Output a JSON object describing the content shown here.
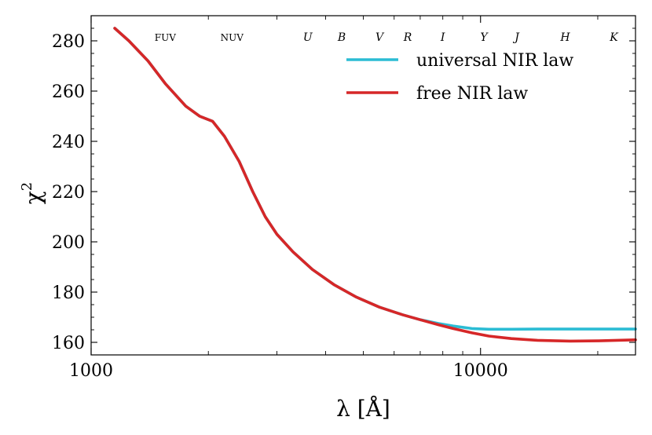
{
  "chart_data": {
    "type": "line",
    "xscale": "log",
    "xlabel": "λ [Å]",
    "ylabel": "χ",
    "ylabel_sup": "2",
    "xlim": [
      1000,
      25000
    ],
    "ylim": [
      155,
      290
    ],
    "xticks": [
      {
        "value": 1000,
        "label": "1000"
      },
      {
        "value": 10000,
        "label": "10000"
      }
    ],
    "yticks": [
      {
        "value": 160,
        "label": "160"
      },
      {
        "value": 180,
        "label": "180"
      },
      {
        "value": 200,
        "label": "200"
      },
      {
        "value": 220,
        "label": "220"
      },
      {
        "value": 240,
        "label": "240"
      },
      {
        "value": 260,
        "label": "260"
      },
      {
        "value": 280,
        "label": "280"
      }
    ],
    "bands": [
      {
        "label": "FUV",
        "x": 1550,
        "italic": false
      },
      {
        "label": "NUV",
        "x": 2300,
        "italic": false
      },
      {
        "label": "U",
        "x": 3600,
        "italic": true
      },
      {
        "label": "B",
        "x": 4400,
        "italic": true
      },
      {
        "label": "V",
        "x": 5500,
        "italic": true
      },
      {
        "label": "R",
        "x": 6500,
        "italic": true
      },
      {
        "label": "I",
        "x": 8000,
        "italic": true
      },
      {
        "label": "Y",
        "x": 10200,
        "italic": true
      },
      {
        "label": "J",
        "x": 12400,
        "italic": true
      },
      {
        "label": "H",
        "x": 16500,
        "italic": true
      },
      {
        "label": "K",
        "x": 22000,
        "italic": true
      }
    ],
    "legend_position": "top-right",
    "series": [
      {
        "name": "universal NIR law",
        "color": "#2bbcd4",
        "x": [
          1150,
          1250,
          1400,
          1550,
          1750,
          1900,
          2050,
          2200,
          2400,
          2600,
          2800,
          3000,
          3300,
          3700,
          4200,
          4800,
          5500,
          6300,
          7000,
          7800,
          8500,
          9500,
          10500,
          12000,
          14000,
          17000,
          20000,
          25000
        ],
        "values": [
          285,
          280,
          272,
          263,
          254,
          250,
          248,
          242,
          232,
          220,
          210,
          203,
          196,
          189,
          183,
          178,
          174,
          171,
          169,
          167.5,
          166.5,
          165.5,
          165.2,
          165.2,
          165.3,
          165.3,
          165.3,
          165.3
        ]
      },
      {
        "name": "free NIR law",
        "color": "#d62728",
        "x": [
          1150,
          1250,
          1400,
          1550,
          1750,
          1900,
          2050,
          2200,
          2400,
          2600,
          2800,
          3000,
          3300,
          3700,
          4200,
          4800,
          5500,
          6300,
          7000,
          7800,
          8500,
          9500,
          10500,
          12000,
          14000,
          17000,
          20000,
          25000
        ],
        "values": [
          285,
          280,
          272,
          263,
          254,
          250,
          248,
          242,
          232,
          220,
          210,
          203,
          196,
          189,
          183,
          178,
          174,
          171,
          169,
          167,
          165.5,
          163.8,
          162.5,
          161.5,
          160.8,
          160.5,
          160.6,
          161.0
        ]
      }
    ]
  }
}
